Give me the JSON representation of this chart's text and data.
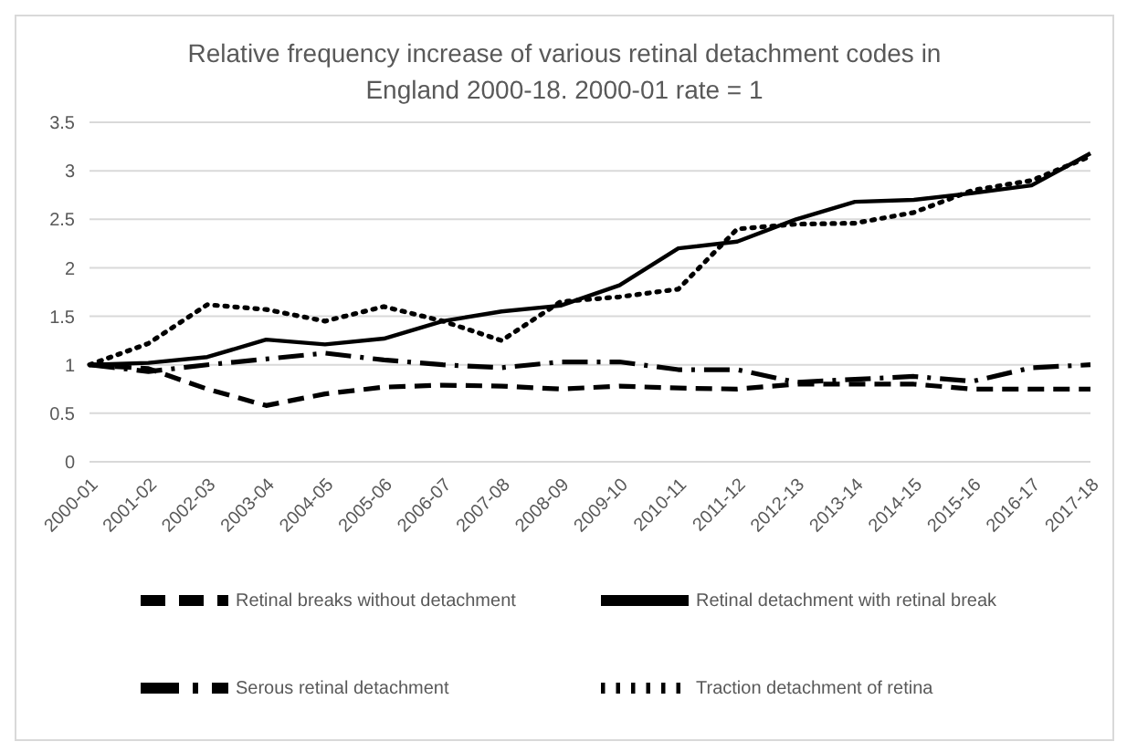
{
  "chart_data": {
    "type": "line",
    "title": "Relative frequency increase of various retinal detachment codes in England 2000-18. 2000-01 rate = 1",
    "categories": [
      "2000-01",
      "2001-02",
      "2002-03",
      "2003-04",
      "2004-05",
      "2005-06",
      "2006-07",
      "2007-08",
      "2008-09",
      "2009-10",
      "2010-11",
      "2011-12",
      "2012-13",
      "2013-14",
      "2014-15",
      "2015-16",
      "2016-17",
      "2017-18"
    ],
    "series": [
      {
        "name": "Retinal detachment with retinal break",
        "color": "#000000",
        "line_style": "solid",
        "values": [
          1.0,
          1.02,
          1.08,
          1.26,
          1.21,
          1.27,
          1.45,
          1.55,
          1.61,
          1.82,
          2.2,
          2.27,
          2.5,
          2.68,
          2.7,
          2.77,
          2.85,
          3.18
        ]
      },
      {
        "name": "Serous retinal detachment",
        "color": "#000000",
        "line_style": "dashdot",
        "values": [
          1.0,
          0.93,
          1.0,
          1.06,
          1.12,
          1.05,
          1.0,
          0.97,
          1.03,
          1.03,
          0.95,
          0.95,
          0.82,
          0.85,
          0.88,
          0.83,
          0.97,
          1.0
        ]
      },
      {
        "name": "Retinal breaks without detachment",
        "color": "#000000",
        "line_style": "dashed",
        "values": [
          1.0,
          0.96,
          0.75,
          0.58,
          0.7,
          0.77,
          0.79,
          0.78,
          0.75,
          0.78,
          0.76,
          0.75,
          0.8,
          0.8,
          0.8,
          0.75,
          0.75,
          0.75
        ]
      },
      {
        "name": "Traction detachment of retina",
        "color": "#000000",
        "line_style": "dotted",
        "values": [
          1.0,
          1.22,
          1.62,
          1.57,
          1.45,
          1.6,
          1.45,
          1.25,
          1.65,
          1.7,
          1.78,
          2.4,
          2.45,
          2.46,
          2.57,
          2.8,
          2.9,
          3.15
        ]
      }
    ],
    "ylim": [
      0,
      3.5
    ],
    "yticks": [
      0,
      0.5,
      1,
      1.5,
      2,
      2.5,
      3,
      3.5
    ],
    "grid": "y",
    "legend": "bottom",
    "marker": "none"
  }
}
